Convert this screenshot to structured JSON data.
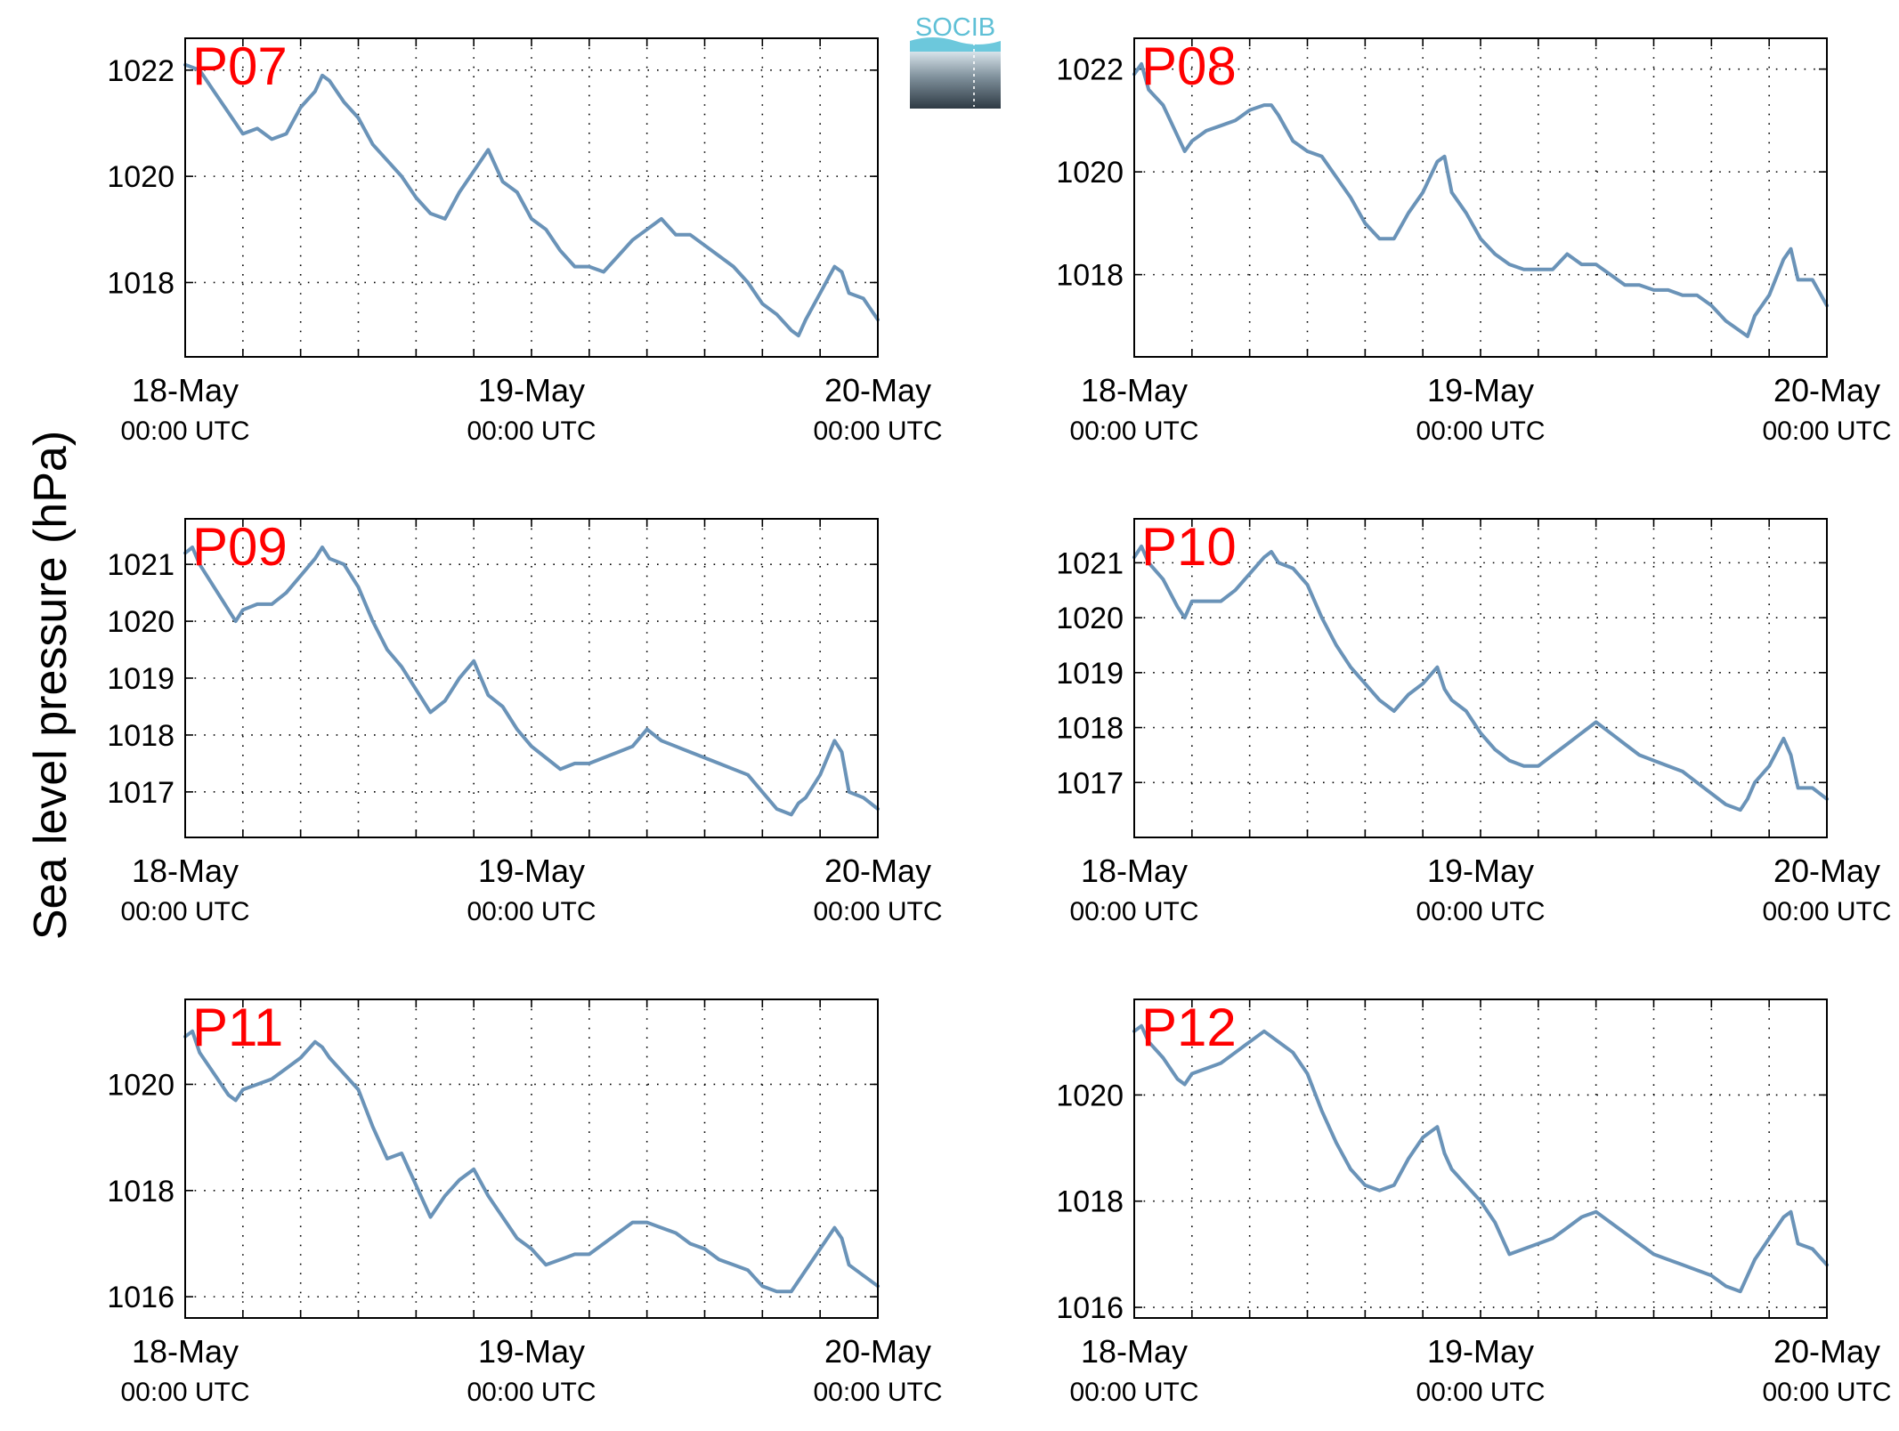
{
  "figure": {
    "ylabel": "Sea level pressure (hPa)",
    "logo_text": "SOCIB",
    "colors": {
      "line": "#6a93b8",
      "panel_label": "#ff0000",
      "logo_top": "#5fc0d6",
      "logo_bottom": "#2e3a44"
    }
  },
  "chart_data": [
    {
      "type": "line",
      "label": "P07",
      "title": "",
      "xlabel": "",
      "ylabel": "Sea level pressure (hPa)",
      "xlim": [
        0,
        48
      ],
      "ylim": [
        1016.6,
        1022.6
      ],
      "grid": true,
      "xticks": [
        0,
        24,
        48
      ],
      "xtick_labels": [
        [
          "18-May",
          "00:00 UTC"
        ],
        [
          "19-May",
          "00:00 UTC"
        ],
        [
          "20-May",
          "00:00 UTC"
        ]
      ],
      "yticks": [
        1018,
        1020,
        1022
      ],
      "ytick_labels": [
        "1018",
        "1020",
        "1022"
      ],
      "x": [
        0,
        1,
        2,
        3,
        4,
        5,
        6,
        7,
        8,
        9,
        9.5,
        10,
        11,
        12,
        13,
        14,
        15,
        16,
        17,
        18,
        19,
        19.5,
        20,
        21,
        22,
        23,
        24,
        25,
        26,
        27,
        28,
        29,
        30,
        31,
        32,
        33,
        34,
        35,
        36,
        37,
        38,
        39,
        40,
        41,
        42,
        42.5,
        43,
        44,
        45,
        45.5,
        46,
        47,
        48
      ],
      "y": [
        1022.1,
        1022.0,
        1021.6,
        1021.2,
        1020.8,
        1020.9,
        1020.7,
        1020.8,
        1021.3,
        1021.6,
        1021.9,
        1021.8,
        1021.4,
        1021.1,
        1020.6,
        1020.3,
        1020.0,
        1019.6,
        1019.3,
        1019.2,
        1019.7,
        1019.9,
        1020.1,
        1020.5,
        1019.9,
        1019.7,
        1019.2,
        1019.0,
        1018.6,
        1018.3,
        1018.3,
        1018.2,
        1018.5,
        1018.8,
        1019.0,
        1019.2,
        1018.9,
        1018.9,
        1018.7,
        1018.5,
        1018.3,
        1018.0,
        1017.6,
        1017.4,
        1017.1,
        1017.0,
        1017.3,
        1017.8,
        1018.3,
        1018.2,
        1017.8,
        1017.7,
        1017.3
      ]
    },
    {
      "type": "line",
      "label": "P08",
      "title": "",
      "xlabel": "",
      "ylabel": "Sea level pressure (hPa)",
      "xlim": [
        0,
        48
      ],
      "ylim": [
        1016.4,
        1022.6
      ],
      "grid": true,
      "xticks": [
        0,
        24,
        48
      ],
      "xtick_labels": [
        [
          "18-May",
          "00:00 UTC"
        ],
        [
          "19-May",
          "00:00 UTC"
        ],
        [
          "20-May",
          "00:00 UTC"
        ]
      ],
      "yticks": [
        1018,
        1020,
        1022
      ],
      "ytick_labels": [
        "1018",
        "1020",
        "1022"
      ],
      "x": [
        0,
        0.5,
        1,
        2,
        3,
        3.5,
        4,
        5,
        6,
        7,
        8,
        9,
        9.5,
        10,
        11,
        12,
        13,
        14,
        15,
        16,
        17,
        18,
        19,
        20,
        21,
        21.5,
        22,
        23,
        24,
        25,
        26,
        27,
        28,
        29,
        30,
        31,
        32,
        33,
        34,
        35,
        36,
        37,
        38,
        39,
        40,
        41,
        42,
        42.5,
        43,
        44,
        45,
        45.5,
        46,
        47,
        48
      ],
      "y": [
        1021.9,
        1022.1,
        1021.6,
        1021.3,
        1020.7,
        1020.4,
        1020.6,
        1020.8,
        1020.9,
        1021.0,
        1021.2,
        1021.3,
        1021.3,
        1021.1,
        1020.6,
        1020.4,
        1020.3,
        1019.9,
        1019.5,
        1019.0,
        1018.7,
        1018.7,
        1019.2,
        1019.6,
        1020.2,
        1020.3,
        1019.6,
        1019.2,
        1018.7,
        1018.4,
        1018.2,
        1018.1,
        1018.1,
        1018.1,
        1018.4,
        1018.2,
        1018.2,
        1018.0,
        1017.8,
        1017.8,
        1017.7,
        1017.7,
        1017.6,
        1017.6,
        1017.4,
        1017.1,
        1016.9,
        1016.8,
        1017.2,
        1017.6,
        1018.3,
        1018.5,
        1017.9,
        1017.9,
        1017.4
      ]
    },
    {
      "type": "line",
      "label": "P09",
      "title": "",
      "xlabel": "",
      "ylabel": "Sea level pressure (hPa)",
      "xlim": [
        0,
        48
      ],
      "ylim": [
        1016.2,
        1021.8
      ],
      "grid": true,
      "xticks": [
        0,
        24,
        48
      ],
      "xtick_labels": [
        [
          "18-May",
          "00:00 UTC"
        ],
        [
          "19-May",
          "00:00 UTC"
        ],
        [
          "20-May",
          "00:00 UTC"
        ]
      ],
      "yticks": [
        1017,
        1018,
        1019,
        1020,
        1021
      ],
      "ytick_labels": [
        "1017",
        "1018",
        "1019",
        "1020",
        "1021"
      ],
      "x": [
        0,
        0.5,
        1,
        2,
        3,
        3.5,
        4,
        5,
        6,
        7,
        8,
        9,
        9.5,
        10,
        11,
        12,
        13,
        14,
        15,
        16,
        17,
        18,
        19,
        20,
        21,
        21.5,
        22,
        23,
        24,
        25,
        26,
        27,
        28,
        29,
        30,
        31,
        32,
        33,
        34,
        35,
        36,
        37,
        38,
        39,
        40,
        41,
        42,
        42.5,
        43,
        44,
        45,
        45.5,
        46,
        47,
        48
      ],
      "y": [
        1021.2,
        1021.3,
        1021.0,
        1020.6,
        1020.2,
        1020.0,
        1020.2,
        1020.3,
        1020.3,
        1020.5,
        1020.8,
        1021.1,
        1021.3,
        1021.1,
        1021.0,
        1020.6,
        1020.0,
        1019.5,
        1019.2,
        1018.8,
        1018.4,
        1018.6,
        1019.0,
        1019.3,
        1018.7,
        1018.6,
        1018.5,
        1018.1,
        1017.8,
        1017.6,
        1017.4,
        1017.5,
        1017.5,
        1017.6,
        1017.7,
        1017.8,
        1018.1,
        1017.9,
        1017.8,
        1017.7,
        1017.6,
        1017.5,
        1017.4,
        1017.3,
        1017.0,
        1016.7,
        1016.6,
        1016.8,
        1016.9,
        1017.3,
        1017.9,
        1017.7,
        1017.0,
        1016.9,
        1016.7
      ]
    },
    {
      "type": "line",
      "label": "P10",
      "title": "",
      "xlabel": "",
      "ylabel": "Sea level pressure (hPa)",
      "xlim": [
        0,
        48
      ],
      "ylim": [
        1016.0,
        1021.8
      ],
      "grid": true,
      "xticks": [
        0,
        24,
        48
      ],
      "xtick_labels": [
        [
          "18-May",
          "00:00 UTC"
        ],
        [
          "19-May",
          "00:00 UTC"
        ],
        [
          "20-May",
          "00:00 UTC"
        ]
      ],
      "yticks": [
        1017,
        1018,
        1019,
        1020,
        1021
      ],
      "ytick_labels": [
        "1017",
        "1018",
        "1019",
        "1020",
        "1021"
      ],
      "x": [
        0,
        0.5,
        1,
        2,
        3,
        3.5,
        4,
        5,
        6,
        7,
        8,
        9,
        9.5,
        10,
        11,
        12,
        13,
        14,
        15,
        16,
        17,
        18,
        19,
        20,
        21,
        21.5,
        22,
        23,
        24,
        25,
        26,
        27,
        28,
        29,
        30,
        31,
        32,
        33,
        34,
        35,
        36,
        37,
        38,
        39,
        40,
        41,
        42,
        42.5,
        43,
        44,
        45,
        45.5,
        46,
        47,
        48
      ],
      "y": [
        1021.1,
        1021.3,
        1021.0,
        1020.7,
        1020.2,
        1020.0,
        1020.3,
        1020.3,
        1020.3,
        1020.5,
        1020.8,
        1021.1,
        1021.2,
        1021.0,
        1020.9,
        1020.6,
        1020.0,
        1019.5,
        1019.1,
        1018.8,
        1018.5,
        1018.3,
        1018.6,
        1018.8,
        1019.1,
        1018.7,
        1018.5,
        1018.3,
        1017.9,
        1017.6,
        1017.4,
        1017.3,
        1017.3,
        1017.5,
        1017.7,
        1017.9,
        1018.1,
        1017.9,
        1017.7,
        1017.5,
        1017.4,
        1017.3,
        1017.2,
        1017.0,
        1016.8,
        1016.6,
        1016.5,
        1016.7,
        1017.0,
        1017.3,
        1017.8,
        1017.5,
        1016.9,
        1016.9,
        1016.7
      ]
    },
    {
      "type": "line",
      "label": "P11",
      "title": "",
      "xlabel": "",
      "ylabel": "Sea level pressure (hPa)",
      "xlim": [
        0,
        48
      ],
      "ylim": [
        1015.6,
        1021.6
      ],
      "grid": true,
      "xticks": [
        0,
        24,
        48
      ],
      "xtick_labels": [
        [
          "18-May",
          "00:00 UTC"
        ],
        [
          "19-May",
          "00:00 UTC"
        ],
        [
          "20-May",
          "00:00 UTC"
        ]
      ],
      "yticks": [
        1016,
        1018,
        1020
      ],
      "ytick_labels": [
        "1016",
        "1018",
        "1020"
      ],
      "x": [
        0,
        0.5,
        1,
        2,
        3,
        3.5,
        4,
        5,
        6,
        7,
        8,
        9,
        9.5,
        10,
        11,
        12,
        13,
        14,
        15,
        16,
        17,
        18,
        19,
        20,
        21,
        21.5,
        22,
        23,
        24,
        25,
        26,
        27,
        28,
        29,
        30,
        31,
        32,
        33,
        34,
        35,
        36,
        37,
        38,
        39,
        40,
        41,
        42,
        42.5,
        43,
        44,
        45,
        45.5,
        46,
        47,
        48
      ],
      "y": [
        1020.9,
        1021.0,
        1020.6,
        1020.2,
        1019.8,
        1019.7,
        1019.9,
        1020.0,
        1020.1,
        1020.3,
        1020.5,
        1020.8,
        1020.7,
        1020.5,
        1020.2,
        1019.9,
        1019.2,
        1018.6,
        1018.7,
        1018.1,
        1017.5,
        1017.9,
        1018.2,
        1018.4,
        1017.9,
        1017.7,
        1017.5,
        1017.1,
        1016.9,
        1016.6,
        1016.7,
        1016.8,
        1016.8,
        1017.0,
        1017.2,
        1017.4,
        1017.4,
        1017.3,
        1017.2,
        1017.0,
        1016.9,
        1016.7,
        1016.6,
        1016.5,
        1016.2,
        1016.1,
        1016.1,
        1016.3,
        1016.5,
        1016.9,
        1017.3,
        1017.1,
        1016.6,
        1016.4,
        1016.2
      ]
    },
    {
      "type": "line",
      "label": "P12",
      "title": "",
      "xlabel": "",
      "ylabel": "Sea level pressure (hPa)",
      "xlim": [
        0,
        48
      ],
      "ylim": [
        1015.8,
        1021.8
      ],
      "grid": true,
      "xticks": [
        0,
        24,
        48
      ],
      "xtick_labels": [
        [
          "18-May",
          "00:00 UTC"
        ],
        [
          "19-May",
          "00:00 UTC"
        ],
        [
          "20-May",
          "00:00 UTC"
        ]
      ],
      "yticks": [
        1016,
        1018,
        1020
      ],
      "ytick_labels": [
        "1016",
        "1018",
        "1020"
      ],
      "x": [
        0,
        0.5,
        1,
        2,
        3,
        3.5,
        4,
        5,
        6,
        7,
        8,
        9,
        9.5,
        10,
        11,
        12,
        13,
        14,
        15,
        16,
        17,
        18,
        19,
        20,
        21,
        21.5,
        22,
        23,
        24,
        25,
        26,
        27,
        28,
        29,
        30,
        31,
        32,
        33,
        34,
        35,
        36,
        37,
        38,
        39,
        40,
        41,
        42,
        42.5,
        43,
        44,
        45,
        45.5,
        46,
        47,
        48
      ],
      "y": [
        1021.2,
        1021.3,
        1021.0,
        1020.7,
        1020.3,
        1020.2,
        1020.4,
        1020.5,
        1020.6,
        1020.8,
        1021.0,
        1021.2,
        1021.1,
        1021.0,
        1020.8,
        1020.4,
        1019.7,
        1019.1,
        1018.6,
        1018.3,
        1018.2,
        1018.3,
        1018.8,
        1019.2,
        1019.4,
        1018.9,
        1018.6,
        1018.3,
        1018.0,
        1017.6,
        1017.0,
        1017.1,
        1017.2,
        1017.3,
        1017.5,
        1017.7,
        1017.8,
        1017.6,
        1017.4,
        1017.2,
        1017.0,
        1016.9,
        1016.8,
        1016.7,
        1016.6,
        1016.4,
        1016.3,
        1016.6,
        1016.9,
        1017.3,
        1017.7,
        1017.8,
        1017.2,
        1017.1,
        1016.8
      ]
    }
  ]
}
